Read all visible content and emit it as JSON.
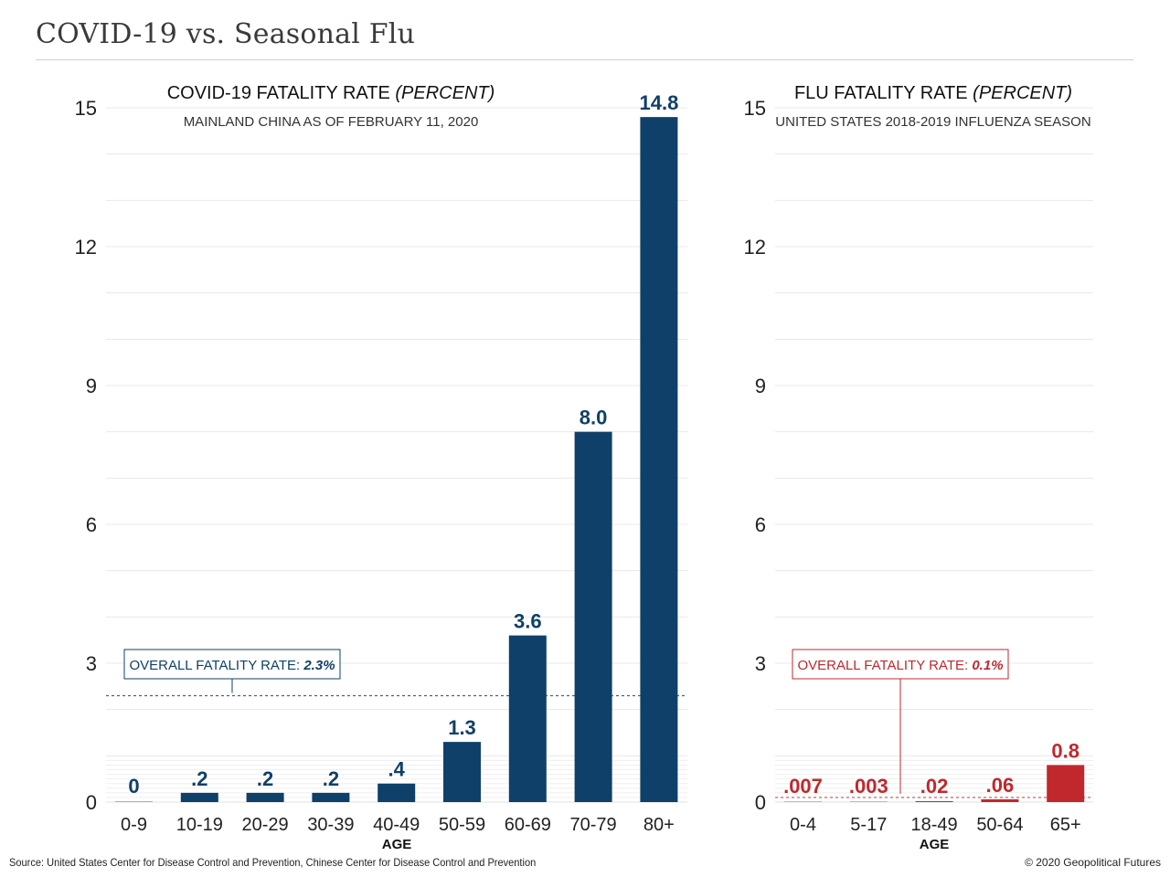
{
  "title": "COVID-19 vs. Seasonal Flu",
  "source": "Source: United States Center for Disease Control and Prevention, Chinese Center for Disease Control and Prevention",
  "copyright": "© 2020 Geopolitical Futures",
  "colors": {
    "covid": "#0f4069",
    "flu": "#c0282d",
    "grid": "#e6e6e6",
    "text": "#222222"
  },
  "chart_data": [
    {
      "type": "bar",
      "title": "COVID-19 FATALITY RATE",
      "title_unit": "(PERCENT)",
      "subtitle": "MAINLAND CHINA AS OF FEBRUARY 11, 2020",
      "xlabel": "AGE",
      "ylabel": "",
      "ylim": [
        0,
        15
      ],
      "yticks": [
        0,
        3,
        6,
        9,
        12,
        15
      ],
      "grid": true,
      "categories": [
        "0-9",
        "10-19",
        "20-29",
        "30-39",
        "40-49",
        "50-59",
        "60-69",
        "70-79",
        "80+"
      ],
      "values": [
        0,
        0.2,
        0.2,
        0.2,
        0.4,
        1.3,
        3.6,
        8.0,
        14.8
      ],
      "data_labels": [
        "0",
        ".2",
        ".2",
        ".2",
        ".4",
        "1.3",
        "3.6",
        "8.0",
        "14.8"
      ],
      "reference_line": {
        "label": "OVERALL FATALITY RATE: ",
        "value_label": "2.3%",
        "value": 2.3
      }
    },
    {
      "type": "bar",
      "title": "FLU FATALITY RATE",
      "title_unit": "(PERCENT)",
      "subtitle": "UNITED STATES 2018-2019 INFLUENZA SEASON",
      "xlabel": "AGE",
      "ylabel": "",
      "ylim": [
        0,
        15
      ],
      "yticks": [
        0,
        3,
        6,
        9,
        12,
        15
      ],
      "grid": true,
      "categories": [
        "0-4",
        "5-17",
        "18-49",
        "50-64",
        "65+"
      ],
      "values": [
        0.007,
        0.003,
        0.02,
        0.06,
        0.8
      ],
      "data_labels": [
        ".007",
        ".003",
        ".02",
        ".06",
        "0.8"
      ],
      "reference_line": {
        "label": "OVERALL FATALITY RATE: ",
        "value_label": "0.1%",
        "value": 0.1
      }
    }
  ]
}
